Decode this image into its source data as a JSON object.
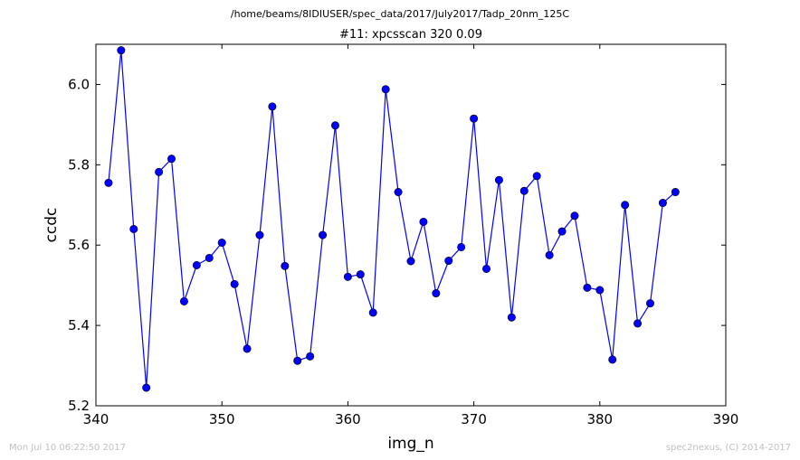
{
  "figure": {
    "path_title": "/home/beams/8IDIUSER/spec_data/2017/July2017/Tadp_20nm_125C",
    "footer_timestamp": "Mon Jul 10 06:22:50 2017",
    "footer_credit": "spec2nexus, (C) 2014-2017"
  },
  "colors": {
    "series": "#0000ff",
    "axes": "#000000",
    "footer_text": "#c0c0c0",
    "background": "#ffffff"
  },
  "chart_data": {
    "type": "line",
    "title": "#11: xpcsscan 320 0.09",
    "xlabel": "img_n",
    "ylabel": "ccdc",
    "xlim": [
      340,
      390
    ],
    "ylim": [
      5.2,
      6.1
    ],
    "xticks": [
      340,
      350,
      360,
      370,
      380,
      390
    ],
    "yticks": [
      5.2,
      5.4,
      5.6,
      5.8,
      6.0
    ],
    "xtick_labels": [
      "340",
      "350",
      "360",
      "370",
      "380",
      "390"
    ],
    "ytick_labels": [
      "5.2",
      "5.4",
      "5.6",
      "5.8",
      "6.0"
    ],
    "grid": false,
    "marker": "circle",
    "series": [
      {
        "x": [
          341,
          342,
          343,
          344,
          345,
          346,
          347,
          348,
          349,
          350,
          351,
          352,
          353,
          354,
          355,
          356,
          357,
          358,
          359,
          360,
          361,
          362,
          363,
          364,
          365,
          366,
          367,
          368,
          369,
          370,
          371,
          372,
          373,
          374,
          375,
          376,
          377,
          378,
          379,
          380,
          381,
          382,
          383,
          384,
          385,
          386
        ],
        "y": [
          5.755,
          6.085,
          5.64,
          5.245,
          5.782,
          5.815,
          5.46,
          5.55,
          5.568,
          5.606,
          5.503,
          5.342,
          5.625,
          5.945,
          5.548,
          5.312,
          5.323,
          5.625,
          5.898,
          5.521,
          5.527,
          5.432,
          5.988,
          5.732,
          5.56,
          5.658,
          5.48,
          5.561,
          5.595,
          5.915,
          5.541,
          5.762,
          5.42,
          5.735,
          5.772,
          5.575,
          5.634,
          5.673,
          5.494,
          5.488,
          5.315,
          5.7,
          5.405,
          5.455,
          5.705,
          5.732
        ]
      }
    ]
  }
}
